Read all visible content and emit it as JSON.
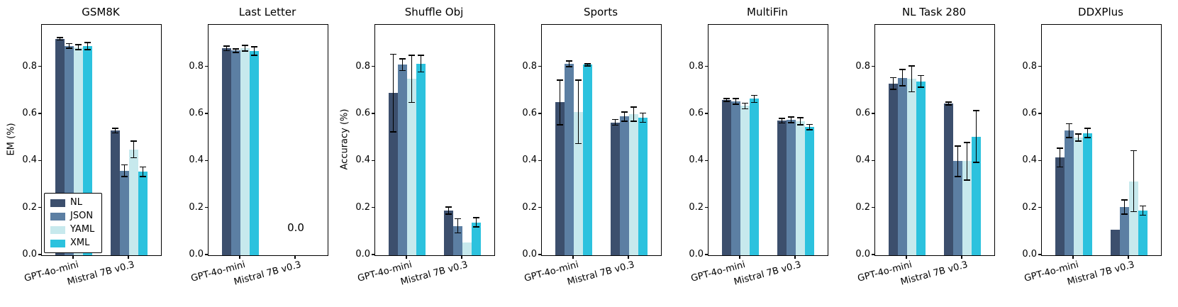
{
  "figure": {
    "background": "#ffffff",
    "axis_color": "#000000",
    "error_bar_color": "#000000"
  },
  "legend": {
    "location": "lower-left-of-first-subplot",
    "items": [
      {
        "label": "NL",
        "color": "#3c4f6d"
      },
      {
        "label": "JSON",
        "color": "#5c7fa3"
      },
      {
        "label": "YAML",
        "color": "#c7e9ed"
      },
      {
        "label": "XML",
        "color": "#2cc2de"
      }
    ]
  },
  "chart_data": [
    {
      "type": "bar",
      "title": "GSM8K",
      "ylabel": "EM (%)",
      "ylim": [
        0,
        0.98
      ],
      "yticks": [
        0.0,
        0.2,
        0.4,
        0.6,
        0.8
      ],
      "categories": [
        "GPT-4o-mini",
        "Mistral 7B v0.3"
      ],
      "has_legend": true,
      "series": [
        {
          "name": "NL",
          "values": [
            0.92,
            0.53
          ],
          "errors": [
            0.005,
            0.01
          ]
        },
        {
          "name": "JSON",
          "values": [
            0.89,
            0.36
          ],
          "errors": [
            0.01,
            0.025
          ]
        },
        {
          "name": "YAML",
          "values": [
            0.885,
            0.45
          ],
          "errors": [
            0.01,
            0.035
          ]
        },
        {
          "name": "XML",
          "values": [
            0.89,
            0.355
          ],
          "errors": [
            0.015,
            0.02
          ]
        }
      ]
    },
    {
      "type": "bar",
      "title": "Last Letter",
      "ylabel": "",
      "ylim": [
        0,
        0.98
      ],
      "yticks": [
        0.0,
        0.2,
        0.4,
        0.6,
        0.8
      ],
      "categories": [
        "GPT-4o-mini",
        "Mistral 7B v0.3"
      ],
      "has_legend": false,
      "annotation": {
        "text": "0.0",
        "category_index": 1,
        "y": 0.09
      },
      "series": [
        {
          "name": "NL",
          "values": [
            0.88,
            0
          ],
          "errors": [
            0.01,
            0
          ]
        },
        {
          "name": "JSON",
          "values": [
            0.87,
            0
          ],
          "errors": [
            0.008,
            0
          ]
        },
        {
          "name": "YAML",
          "values": [
            0.88,
            0
          ],
          "errors": [
            0.012,
            0
          ]
        },
        {
          "name": "XML",
          "values": [
            0.868,
            0
          ],
          "errors": [
            0.018,
            0
          ]
        }
      ]
    },
    {
      "type": "bar",
      "title": "Shuffle Obj",
      "ylabel": "Accuracy (%)",
      "ylim": [
        0,
        0.98
      ],
      "yticks": [
        0.0,
        0.2,
        0.4,
        0.6,
        0.8
      ],
      "categories": [
        "GPT-4o-mini",
        "Mistral 7B v0.3"
      ],
      "has_legend": false,
      "series": [
        {
          "name": "NL",
          "values": [
            0.69,
            0.19
          ],
          "errors": [
            0.165,
            0.015
          ]
        },
        {
          "name": "JSON",
          "values": [
            0.81,
            0.125
          ],
          "errors": [
            0.025,
            0.03
          ]
        },
        {
          "name": "YAML",
          "values": [
            0.75,
            0.055
          ],
          "errors": [
            0.1,
            0
          ]
        },
        {
          "name": "XML",
          "values": [
            0.815,
            0.14
          ],
          "errors": [
            0.035,
            0.02
          ]
        }
      ]
    },
    {
      "type": "bar",
      "title": "Sports",
      "ylabel": "",
      "ylim": [
        0,
        0.98
      ],
      "yticks": [
        0.0,
        0.2,
        0.4,
        0.6,
        0.8
      ],
      "categories": [
        "GPT-4o-mini",
        "Mistral 7B v0.3"
      ],
      "has_legend": false,
      "series": [
        {
          "name": "NL",
          "values": [
            0.65,
            0.565
          ],
          "errors": [
            0.095,
            0.012
          ]
        },
        {
          "name": "JSON",
          "values": [
            0.815,
            0.59
          ],
          "errors": [
            0.012,
            0.02
          ]
        },
        {
          "name": "YAML",
          "values": [
            0.61,
            0.6
          ],
          "errors": [
            0.135,
            0.03
          ]
        },
        {
          "name": "XML",
          "values": [
            0.81,
            0.585
          ],
          "errors": [
            0.005,
            0.02
          ]
        }
      ]
    },
    {
      "type": "bar",
      "title": "MultiFin",
      "ylabel": "",
      "ylim": [
        0,
        0.98
      ],
      "yticks": [
        0.0,
        0.2,
        0.4,
        0.6,
        0.8
      ],
      "categories": [
        "GPT-4o-mini",
        "Mistral 7B v0.3"
      ],
      "has_legend": false,
      "series": [
        {
          "name": "NL",
          "values": [
            0.66,
            0.572
          ],
          "errors": [
            0.006,
            0.01
          ]
        },
        {
          "name": "JSON",
          "values": [
            0.655,
            0.576
          ],
          "errors": [
            0.012,
            0.012
          ]
        },
        {
          "name": "YAML",
          "values": [
            0.635,
            0.57
          ],
          "errors": [
            0.012,
            0.015
          ]
        },
        {
          "name": "XML",
          "values": [
            0.665,
            0.545
          ],
          "errors": [
            0.015,
            0.012
          ]
        }
      ]
    },
    {
      "type": "bar",
      "title": "NL Task 280",
      "ylabel": "",
      "ylim": [
        0,
        0.98
      ],
      "yticks": [
        0.0,
        0.2,
        0.4,
        0.6,
        0.8
      ],
      "categories": [
        "GPT-4o-mini",
        "Mistral 7B v0.3"
      ],
      "has_legend": false,
      "series": [
        {
          "name": "NL",
          "values": [
            0.73,
            0.645
          ],
          "errors": [
            0.025,
            0.006
          ]
        },
        {
          "name": "JSON",
          "values": [
            0.755,
            0.4
          ],
          "errors": [
            0.035,
            0.065
          ]
        },
        {
          "name": "YAML",
          "values": [
            0.75,
            0.4
          ],
          "errors": [
            0.055,
            0.08
          ]
        },
        {
          "name": "XML",
          "values": [
            0.74,
            0.505
          ],
          "errors": [
            0.025,
            0.11
          ]
        }
      ]
    },
    {
      "type": "bar",
      "title": "DDXPlus",
      "ylabel": "",
      "ylim": [
        0,
        0.98
      ],
      "yticks": [
        0.0,
        0.2,
        0.4,
        0.6,
        0.8
      ],
      "categories": [
        "GPT-4o-mini",
        "Mistral 7B v0.3"
      ],
      "has_legend": false,
      "series": [
        {
          "name": "NL",
          "values": [
            0.415,
            0.11
          ],
          "errors": [
            0.04,
            0
          ]
        },
        {
          "name": "JSON",
          "values": [
            0.53,
            0.205
          ],
          "errors": [
            0.03,
            0.03
          ]
        },
        {
          "name": "YAML",
          "values": [
            0.5,
            0.315
          ],
          "errors": [
            0.015,
            0.13
          ]
        },
        {
          "name": "XML",
          "values": [
            0.52,
            0.19
          ],
          "errors": [
            0.02,
            0.02
          ]
        }
      ]
    }
  ]
}
